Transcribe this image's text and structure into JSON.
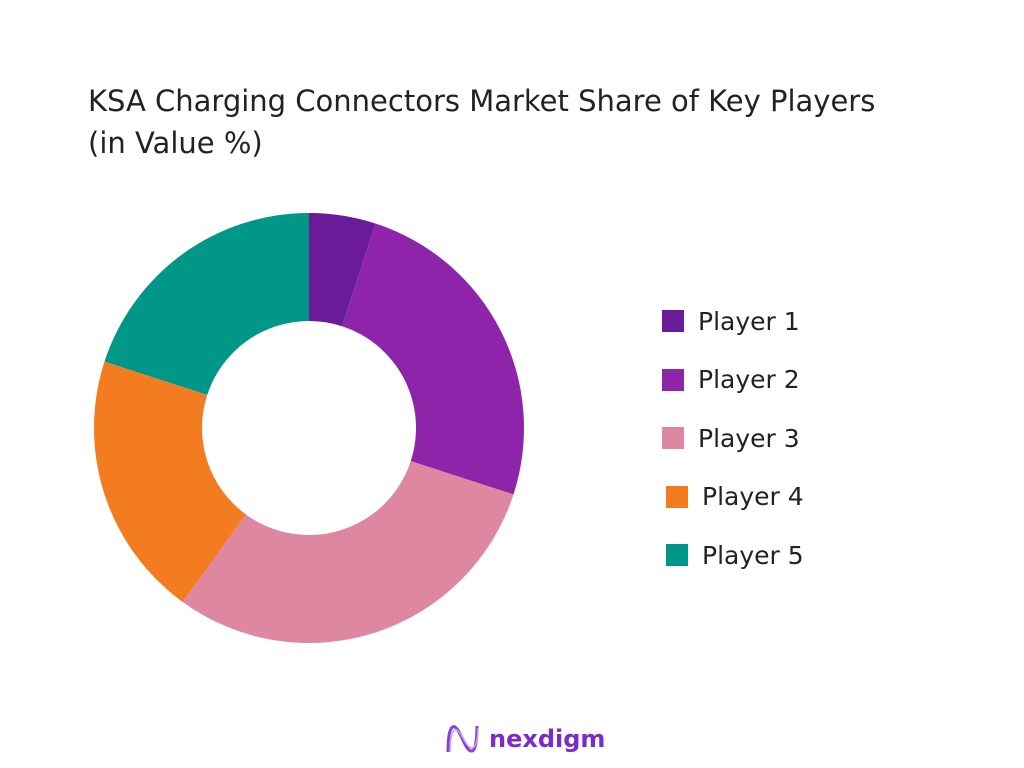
{
  "chart_data": {
    "type": "pie",
    "variant": "donut",
    "title": "KSA Charging Connectors Market Share of Key Players (in Value %)",
    "categories": [
      "Player 1",
      "Player 2",
      "Player 3",
      "Player 4",
      "Player 5"
    ],
    "values": [
      5,
      25,
      30,
      20,
      20
    ],
    "colors": [
      "#6A1B9A",
      "#8E24AA",
      "#DE87A0",
      "#F47C20",
      "#009688"
    ],
    "legend_position": "right"
  },
  "brand": {
    "name": "nexdigm",
    "color": "#7A2BC9"
  }
}
